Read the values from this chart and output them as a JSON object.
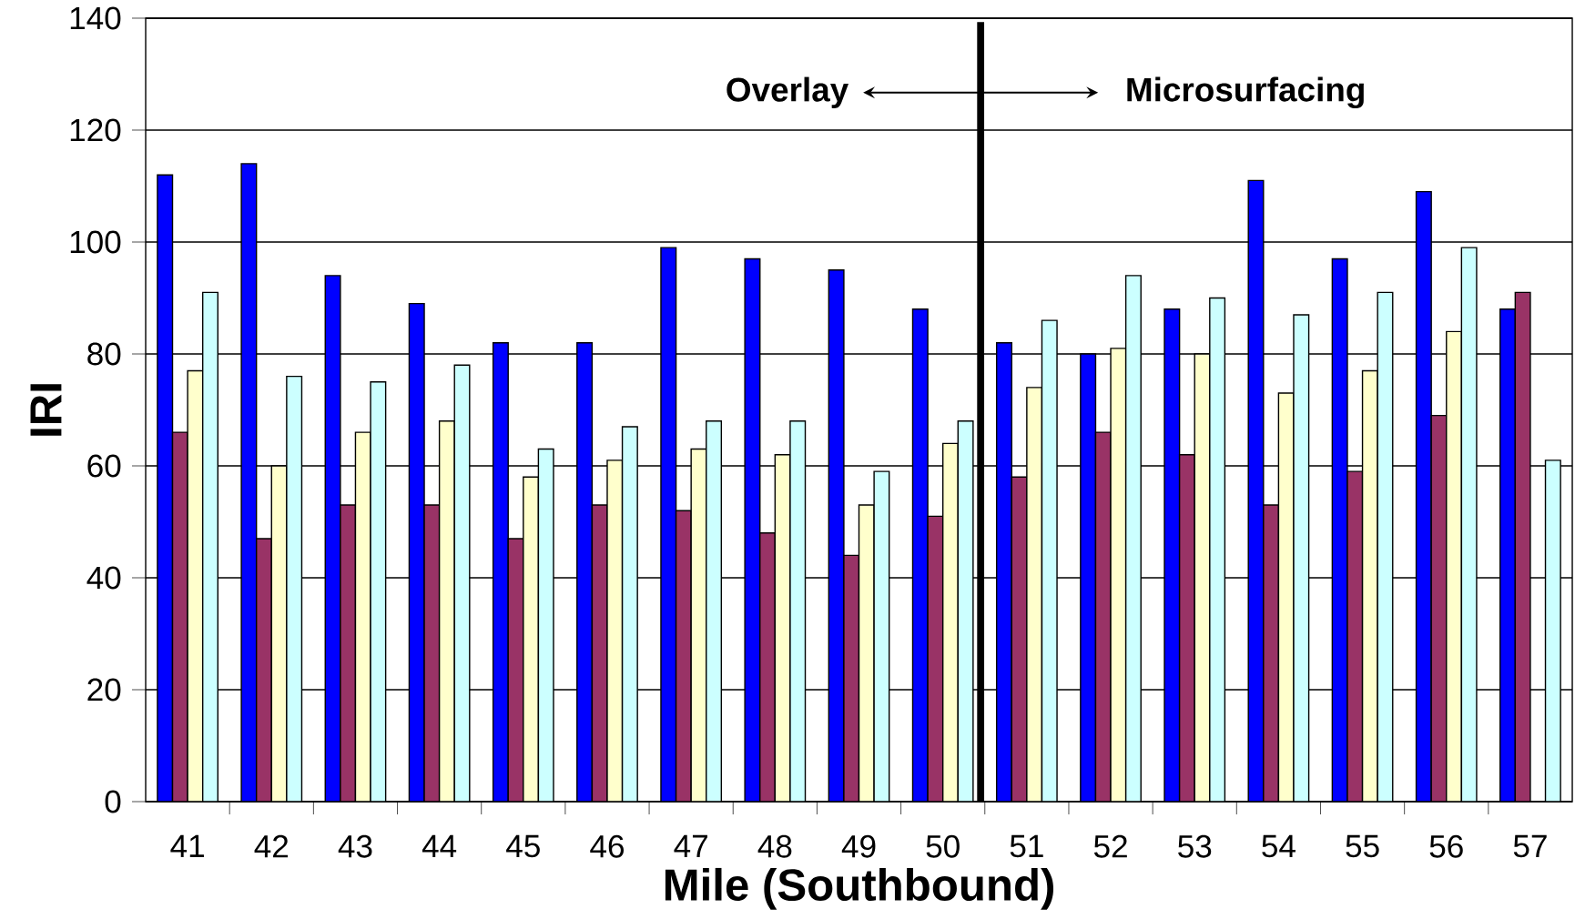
{
  "chart_data": {
    "type": "bar",
    "xlabel": "Mile (Southbound)",
    "ylabel": "IRI",
    "x": [
      41,
      42,
      43,
      44,
      45,
      46,
      47,
      48,
      49,
      50,
      51,
      52,
      53,
      54,
      55,
      56,
      57
    ],
    "xlim": [
      40.5,
      57.5
    ],
    "xticks": [
      41,
      42,
      43,
      44,
      45,
      46,
      47,
      48,
      49,
      50,
      51,
      52,
      53,
      54,
      55,
      56,
      57
    ],
    "ylim": [
      0,
      140
    ],
    "yticks": [
      0,
      20,
      40,
      60,
      80,
      100,
      120,
      140
    ],
    "grid": "y",
    "series": [
      {
        "color": "#0000ff",
        "values": [
          112,
          114,
          94,
          89,
          82,
          82,
          99,
          97,
          95,
          88,
          82,
          80,
          88,
          111,
          97,
          109,
          88
        ]
      },
      {
        "color": "#993366",
        "values": [
          66,
          47,
          53,
          53,
          47,
          53,
          52,
          48,
          44,
          51,
          58,
          66,
          62,
          53,
          59,
          69,
          91
        ]
      },
      {
        "color": "#ffffcc",
        "values": [
          77,
          60,
          66,
          68,
          58,
          61,
          63,
          62,
          53,
          64,
          74,
          81,
          80,
          73,
          77,
          84,
          null
        ]
      },
      {
        "color": "#ccffff",
        "values": [
          91,
          76,
          75,
          78,
          63,
          67,
          68,
          68,
          59,
          68,
          86,
          94,
          90,
          87,
          91,
          99,
          61
        ]
      }
    ],
    "ref_lines": [
      {
        "axis": "x",
        "value": 50.45,
        "color": "#000000"
      }
    ],
    "annotations": [
      "Overlay",
      "Microsurfacing"
    ]
  }
}
